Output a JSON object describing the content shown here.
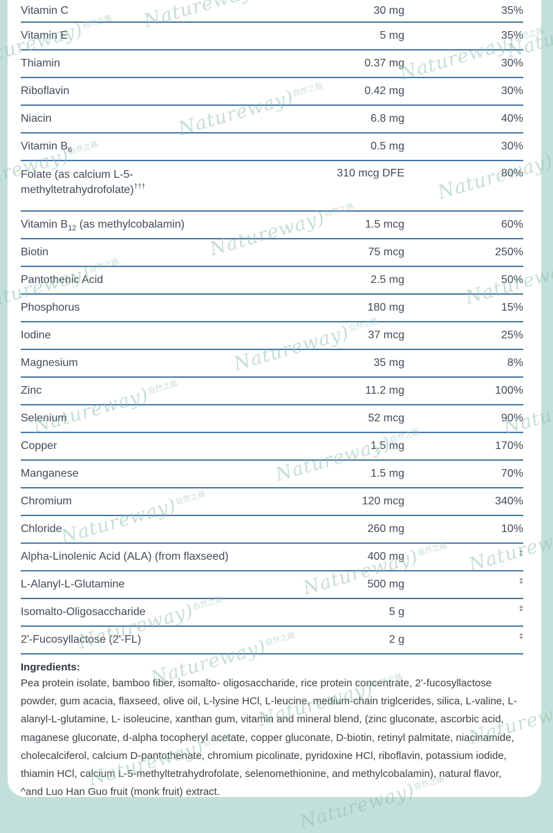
{
  "colors": {
    "background_teal": "#c2e0d9",
    "panel_white": "#ffffff",
    "separator_blue": "#4a78a8",
    "row_text": "#3f4b58",
    "ingredients_text": "#3b4146",
    "watermark_green": "#8fbfae"
  },
  "watermark": {
    "latin": "Natureway",
    "paren": ")",
    "cjk": "自然之路"
  },
  "table": {
    "columns": [
      "nutrient",
      "amount_per_serving",
      "percent_daily_value"
    ],
    "rows": [
      {
        "name": [
          {
            "t": "Vitamin C"
          }
        ],
        "amount": "30 mg",
        "dv": "35%"
      },
      {
        "name": [
          {
            "t": "Vitamin E"
          }
        ],
        "amount": "5 mg",
        "dv": "35%"
      },
      {
        "name": [
          {
            "t": "Thiamin"
          }
        ],
        "amount": "0.37 mg",
        "dv": "30%"
      },
      {
        "name": [
          {
            "t": "Riboflavin"
          }
        ],
        "amount": "0.42 mg",
        "dv": "30%"
      },
      {
        "name": [
          {
            "t": "Niacin"
          }
        ],
        "amount": "6.8 mg",
        "dv": "40%"
      },
      {
        "name": [
          {
            "t": "Vitamin B"
          },
          {
            "t": "6",
            "s": "sub"
          }
        ],
        "amount": "0.5 mg",
        "dv": "30%"
      },
      {
        "name": [
          {
            "t": "Folate (as calcium L-5-"
          },
          {
            "s": "br"
          },
          {
            "t": "methyltetrahydrofolate)"
          },
          {
            "t": "†††",
            "s": "sup"
          }
        ],
        "amount": "310 mcg DFE",
        "dv": "80%",
        "tall": true
      },
      {
        "name": [
          {
            "t": "Vitamin B"
          },
          {
            "t": "12",
            "s": "sub"
          },
          {
            "t": " (as methylcobalamin)"
          }
        ],
        "amount": "1.5 mcg",
        "dv": "60%"
      },
      {
        "name": [
          {
            "t": "Biotin"
          }
        ],
        "amount": "75 mcg",
        "dv": "250%"
      },
      {
        "name": [
          {
            "t": "Pantothenic Acid"
          }
        ],
        "amount": "2.5 mg",
        "dv": "50%"
      },
      {
        "name": [
          {
            "t": "Phosphorus"
          }
        ],
        "amount": "180 mg",
        "dv": "15%"
      },
      {
        "name": [
          {
            "t": "Iodine"
          }
        ],
        "amount": "37 mcg",
        "dv": "25%"
      },
      {
        "name": [
          {
            "t": "Magnesium"
          }
        ],
        "amount": "35 mg",
        "dv": "8%"
      },
      {
        "name": [
          {
            "t": "Zinc"
          }
        ],
        "amount": "11.2 mg",
        "dv": "100%"
      },
      {
        "name": [
          {
            "t": "Selenium"
          }
        ],
        "amount": "52 mcg",
        "dv": "90%"
      },
      {
        "name": [
          {
            "t": "Copper"
          }
        ],
        "amount": "1.5 mg",
        "dv": "170%"
      },
      {
        "name": [
          {
            "t": "Manganese"
          }
        ],
        "amount": "1.5 mg",
        "dv": "70%"
      },
      {
        "name": [
          {
            "t": "Chromium"
          }
        ],
        "amount": "120 mcg",
        "dv": "340%"
      },
      {
        "name": [
          {
            "t": "Chloride"
          }
        ],
        "amount": "260 mg",
        "dv": "10%"
      },
      {
        "name": [
          {
            "t": "Alpha-Linolenic Acid (ALA) (from flaxseed)"
          }
        ],
        "amount": "400 mg",
        "dv": "‡",
        "dv_style": "dagger"
      },
      {
        "name": [
          {
            "t": "L-Alanyl-L-Glutamine"
          }
        ],
        "amount": "500 mg",
        "dv": "‡",
        "dv_style": "dagger"
      },
      {
        "name": [
          {
            "t": "Isomalto-Oligosaccharide"
          }
        ],
        "amount": "5 g",
        "dv": "‡",
        "dv_style": "dagger"
      },
      {
        "name": [
          {
            "t": "2'-Fucosyllactose (2'-FL)"
          }
        ],
        "amount": "2 g",
        "dv": "‡",
        "dv_style": "dagger"
      }
    ]
  },
  "ingredients": {
    "label": "Ingredients:",
    "text": "Pea protein isolate, bamboo fiber, isomalto- oligosaccharide, rice protein concentrate, 2’-fucosyllactose powder, gum acacia, flaxseed, olive oil, L-lysine HCl, L-leucine, medium-chain triglcerides, silica, L-valine, L-alanyl-L-glutamine, L- isoleucine, xanthan gum, vitamin and mineral blend, (zinc gluconate, ascorbic acid, maganese gluconate, d-alpha tocopheryl acetate, copper gluconate, D-biotin, retinyl palmitate, niacinamide, cholecalciferol, calcium D-pantothenate, chromium picolinate, pyridoxine HCl, riboflavin, potassium iodide, thiamin HCl, calcium L-5-methyltetrahydrofolate, selenomethionine, and methylcobalamin), natural flavor, ^and Luo Han Guo fruit (monk fruit) extract."
  }
}
